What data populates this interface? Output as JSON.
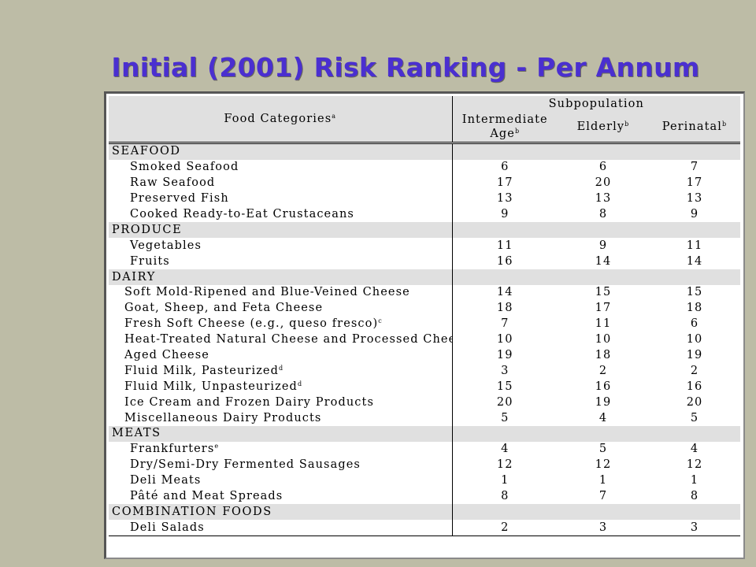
{
  "title": "Initial (2001) Risk Ranking - Per Annum",
  "header": {
    "food_label": "Food Categories",
    "food_sup": "a",
    "subpopulation": "Subpopulation",
    "col1_line1": "Intermediate",
    "col1_line2": "Age",
    "col1_sup": "b",
    "col2": "Elderly",
    "col2_sup": "b",
    "col3": "Perinatal",
    "col3_sup": "b"
  },
  "sections": {
    "seafood": "SEAFOOD",
    "produce": "PRODUCE",
    "dairy": "DAIRY",
    "meats": "MEATS",
    "combination": "COMBINATION FOODS"
  },
  "rows": [
    {
      "name": "Smoked Seafood",
      "sup": "",
      "intermediate": "6",
      "elderly": "6",
      "perinatal": "7"
    },
    {
      "name": "Raw Seafood",
      "sup": "",
      "intermediate": "17",
      "elderly": "20",
      "perinatal": "17"
    },
    {
      "name": "Preserved Fish",
      "sup": "",
      "intermediate": "13",
      "elderly": "13",
      "perinatal": "13"
    },
    {
      "name": "Cooked Ready-to-Eat Crustaceans",
      "sup": "",
      "intermediate": "9",
      "elderly": "8",
      "perinatal": "9"
    },
    {
      "name": "Vegetables",
      "sup": "",
      "intermediate": "11",
      "elderly": "9",
      "perinatal": "11"
    },
    {
      "name": "Fruits",
      "sup": "",
      "intermediate": "16",
      "elderly": "14",
      "perinatal": "14"
    },
    {
      "name": "Soft Mold-Ripened and Blue-Veined Cheese",
      "sup": "",
      "intermediate": "14",
      "elderly": "15",
      "perinatal": "15"
    },
    {
      "name": "Goat, Sheep, and Feta Cheese",
      "sup": "",
      "intermediate": "18",
      "elderly": "17",
      "perinatal": "18"
    },
    {
      "name": "Fresh Soft Cheese (e.g., queso fresco)",
      "sup": "c",
      "intermediate": "7",
      "elderly": "11",
      "perinatal": "6"
    },
    {
      "name": "Heat-Treated Natural Cheese and Processed Cheese",
      "sup": "",
      "intermediate": "10",
      "elderly": "10",
      "perinatal": "10"
    },
    {
      "name": "Aged Cheese",
      "sup": "",
      "intermediate": "19",
      "elderly": "18",
      "perinatal": "19"
    },
    {
      "name": "Fluid Milk, Pasteurized",
      "sup": "d",
      "intermediate": "3",
      "elderly": "2",
      "perinatal": "2"
    },
    {
      "name": "Fluid Milk, Unpasteurized",
      "sup": "d",
      "intermediate": "15",
      "elderly": "16",
      "perinatal": "16"
    },
    {
      "name": "Ice Cream and Frozen Dairy Products",
      "sup": "",
      "intermediate": "20",
      "elderly": "19",
      "perinatal": "20"
    },
    {
      "name": "Miscellaneous Dairy Products",
      "sup": "",
      "intermediate": "5",
      "elderly": "4",
      "perinatal": "5"
    },
    {
      "name": "Frankfurters",
      "sup": "e",
      "intermediate": "4",
      "elderly": "5",
      "perinatal": "4"
    },
    {
      "name": "Dry/Semi-Dry Fermented Sausages",
      "sup": "",
      "intermediate": "12",
      "elderly": "12",
      "perinatal": "12"
    },
    {
      "name": "Deli Meats",
      "sup": "",
      "intermediate": "1",
      "elderly": "1",
      "perinatal": "1"
    },
    {
      "name": "Pâté and Meat Spreads",
      "sup": "",
      "intermediate": "8",
      "elderly": "7",
      "perinatal": "8"
    },
    {
      "name": "Deli Salads",
      "sup": "",
      "intermediate": "2",
      "elderly": "3",
      "perinatal": "3"
    }
  ]
}
